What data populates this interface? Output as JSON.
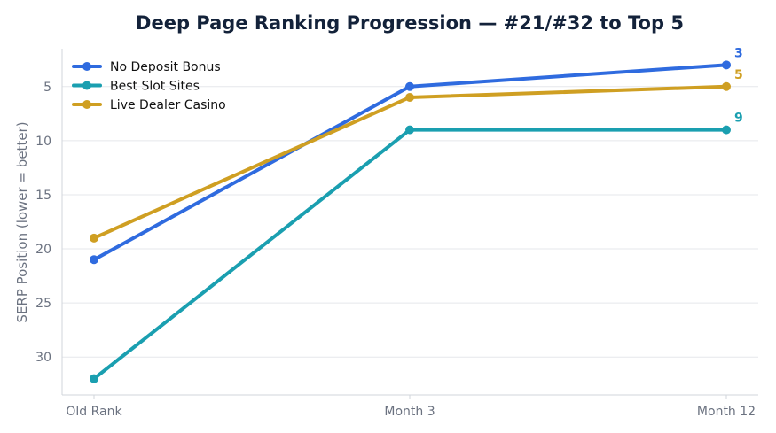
{
  "chart_data": {
    "type": "line",
    "title": "Deep Page Ranking Progression — #21/#32 to Top 5",
    "xlabel": "",
    "ylabel": "SERP Position (lower = better)",
    "categories": [
      "Old Rank",
      "Month 3",
      "Month 12"
    ],
    "y_ticks": [
      5,
      10,
      15,
      20,
      25,
      30
    ],
    "ylim": [
      33.5,
      1.5
    ],
    "y_inverted": true,
    "grid": "horizontal",
    "legend_position": "top-left",
    "series": [
      {
        "name": "No Deposit Bonus",
        "values": [
          21,
          5,
          3
        ],
        "color": "#2f6bdf",
        "end_label": "3"
      },
      {
        "name": "Best Slot Sites",
        "values": [
          32,
          9,
          9
        ],
        "color": "#1a9fb0",
        "end_label": "9"
      },
      {
        "name": "Live Dealer Casino",
        "values": [
          19,
          6,
          5
        ],
        "color": "#cf9f22",
        "end_label": "5"
      }
    ]
  }
}
